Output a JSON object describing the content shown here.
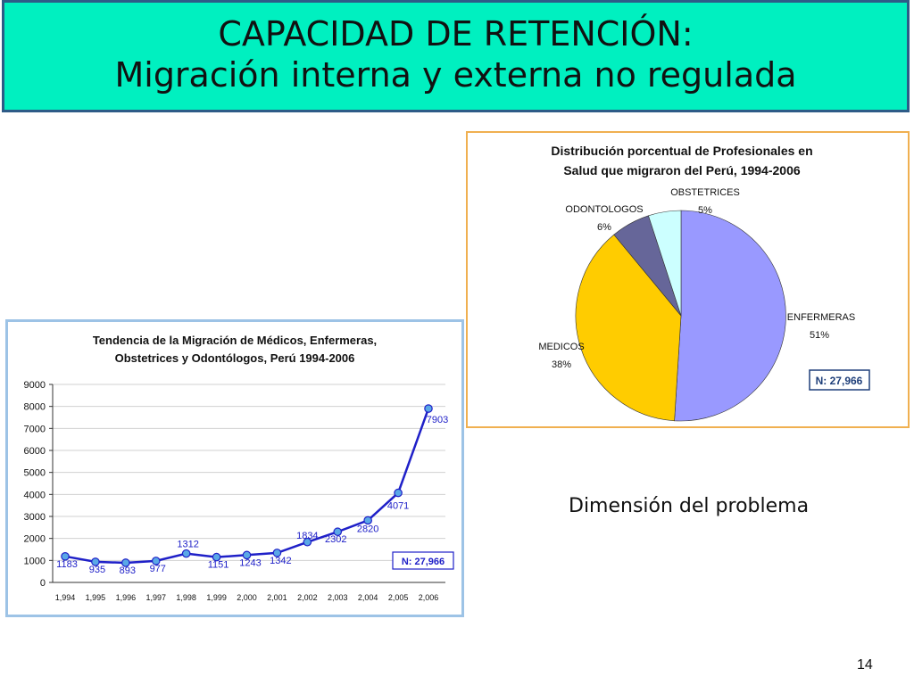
{
  "slide": {
    "title_line1": "CAPACIDAD DE RETENCIÓN:",
    "title_line2": "Migración interna y externa no regulada",
    "dimension_label": "Dimensión del problema",
    "page_number": "14",
    "banner_color": "#00f0c0"
  },
  "chart_data": [
    {
      "type": "line",
      "title_line1": "Tendencia de la Migración de Médicos, Enfermeras,",
      "title_line2": "Obstetrices y Odontólogos, Perú 1994-2006",
      "x": [
        "1,994",
        "1,995",
        "1,996",
        "1,997",
        "1,998",
        "1,999",
        "2,000",
        "2,001",
        "2,002",
        "2,003",
        "2,004",
        "2,005",
        "2,006"
      ],
      "values": [
        1183,
        935,
        893,
        977,
        1312,
        1151,
        1243,
        1342,
        1834,
        2302,
        2820,
        4071,
        7903
      ],
      "data_labels": [
        "1183",
        "935",
        "893",
        "977",
        "1312",
        "1151",
        "1243",
        "1342",
        "1834",
        "2302",
        "2820",
        "4071",
        "7903"
      ],
      "ylim": [
        0,
        9000
      ],
      "yticks": [
        "0",
        "1000",
        "2000",
        "3000",
        "4000",
        "5000",
        "6000",
        "7000",
        "8000",
        "9000"
      ],
      "grid": true,
      "annotation": "N: 27,966",
      "line_color": "#1f20c8",
      "marker_color": "#5aa8e6"
    },
    {
      "type": "pie",
      "title_line1": "Distribución porcentual de Profesionales en",
      "title_line2": "Salud que migraron del Perú, 1994-2006",
      "slices": [
        {
          "label": "ENFERMERAS",
          "percent_label": "51%",
          "value": 51,
          "color": "#9999ff"
        },
        {
          "label": "MEDICOS",
          "percent_label": "38%",
          "value": 38,
          "color": "#ffcc00"
        },
        {
          "label": "ODONTOLOGOS",
          "percent_label": "6%",
          "value": 6,
          "color": "#666699"
        },
        {
          "label": "OBSTETRICES",
          "percent_label": "5%",
          "value": 5,
          "color": "#ccffff"
        }
      ],
      "annotation": "N: 27,966"
    }
  ]
}
